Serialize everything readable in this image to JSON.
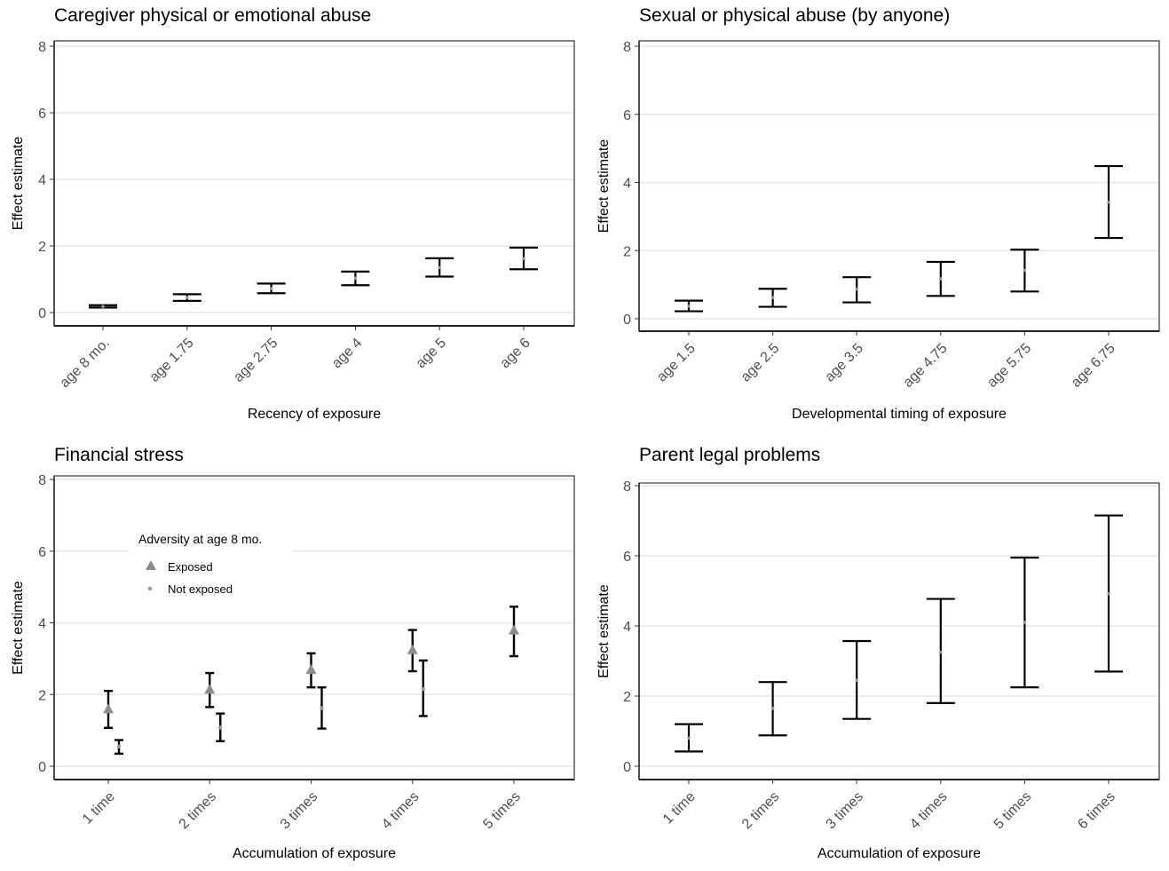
{
  "chart_data": [
    {
      "type": "errorbar",
      "title": "Caregiver physical or emotional abuse",
      "xlabel": "Recency of exposure",
      "ylabel": "Effect estimate",
      "ylim": [
        0,
        8
      ],
      "yticks": [
        0,
        2,
        4,
        6,
        8
      ],
      "grid": "horizontal major",
      "categories": [
        "age 8 mo.",
        "age 1.75",
        "age 2.75",
        "age 4",
        "age 5",
        "age 6"
      ],
      "series": [
        {
          "estimate": [
            0.18,
            0.45,
            0.72,
            1.03,
            1.35,
            1.62
          ],
          "lower": [
            0.15,
            0.35,
            0.58,
            0.82,
            1.08,
            1.3
          ],
          "upper": [
            0.22,
            0.55,
            0.87,
            1.23,
            1.63,
            1.95
          ]
        }
      ]
    },
    {
      "type": "errorbar",
      "title": "Sexual or physical abuse (by anyone)",
      "xlabel": "Developmental timing of exposure",
      "ylabel": "Effect estimate",
      "ylim": [
        0,
        8
      ],
      "yticks": [
        0,
        2,
        4,
        6,
        8
      ],
      "grid": "horizontal major",
      "categories": [
        "age 1.5",
        "age 2.5",
        "age 3.5",
        "age 4.75",
        "age 5.75",
        "age 6.75"
      ],
      "series": [
        {
          "estimate": [
            0.37,
            0.62,
            0.87,
            1.17,
            1.42,
            3.42
          ],
          "lower": [
            0.22,
            0.35,
            0.48,
            0.67,
            0.8,
            2.37
          ],
          "upper": [
            0.53,
            0.88,
            1.22,
            1.67,
            2.03,
            4.48
          ]
        }
      ]
    },
    {
      "type": "errorbar",
      "title": "Financial stress",
      "xlabel": "Accumulation of exposure",
      "ylabel": "Effect estimate",
      "ylim": [
        0,
        8
      ],
      "yticks": [
        0,
        2,
        4,
        6,
        8
      ],
      "grid": "horizontal major",
      "categories": [
        "1 time",
        "2 times",
        "3 times",
        "4 times",
        "5 times"
      ],
      "legend": {
        "title": "Adversity at age 8 mo.",
        "position": "top-left",
        "items": [
          "Exposed",
          "Not exposed"
        ]
      },
      "series": [
        {
          "name": "Exposed",
          "marker": "triangle",
          "estimate": [
            1.6,
            2.15,
            2.7,
            3.25,
            3.8
          ],
          "lower": [
            1.07,
            1.65,
            2.2,
            2.65,
            3.07
          ],
          "upper": [
            2.1,
            2.6,
            3.15,
            3.8,
            4.45
          ]
        },
        {
          "name": "Not exposed",
          "marker": "circle",
          "estimate": [
            0.55,
            1.08,
            1.62,
            2.15,
            null
          ],
          "lower": [
            0.35,
            0.7,
            1.05,
            1.4,
            null
          ],
          "upper": [
            0.73,
            1.47,
            2.2,
            2.95,
            null
          ]
        }
      ]
    },
    {
      "type": "errorbar",
      "title": "Parent legal problems",
      "xlabel": "Accumulation of exposure",
      "ylabel": "Effect estimate",
      "ylim": [
        0,
        8
      ],
      "yticks": [
        0,
        2,
        4,
        6,
        8
      ],
      "grid": "horizontal major",
      "categories": [
        "1 time",
        "2 times",
        "3 times",
        "4 times",
        "5 times",
        "6 times"
      ],
      "series": [
        {
          "estimate": [
            0.8,
            1.65,
            2.45,
            3.25,
            4.1,
            4.92
          ],
          "lower": [
            0.42,
            0.88,
            1.35,
            1.8,
            2.25,
            2.7
          ],
          "upper": [
            1.2,
            2.4,
            3.57,
            4.77,
            5.95,
            7.15
          ]
        }
      ]
    }
  ]
}
